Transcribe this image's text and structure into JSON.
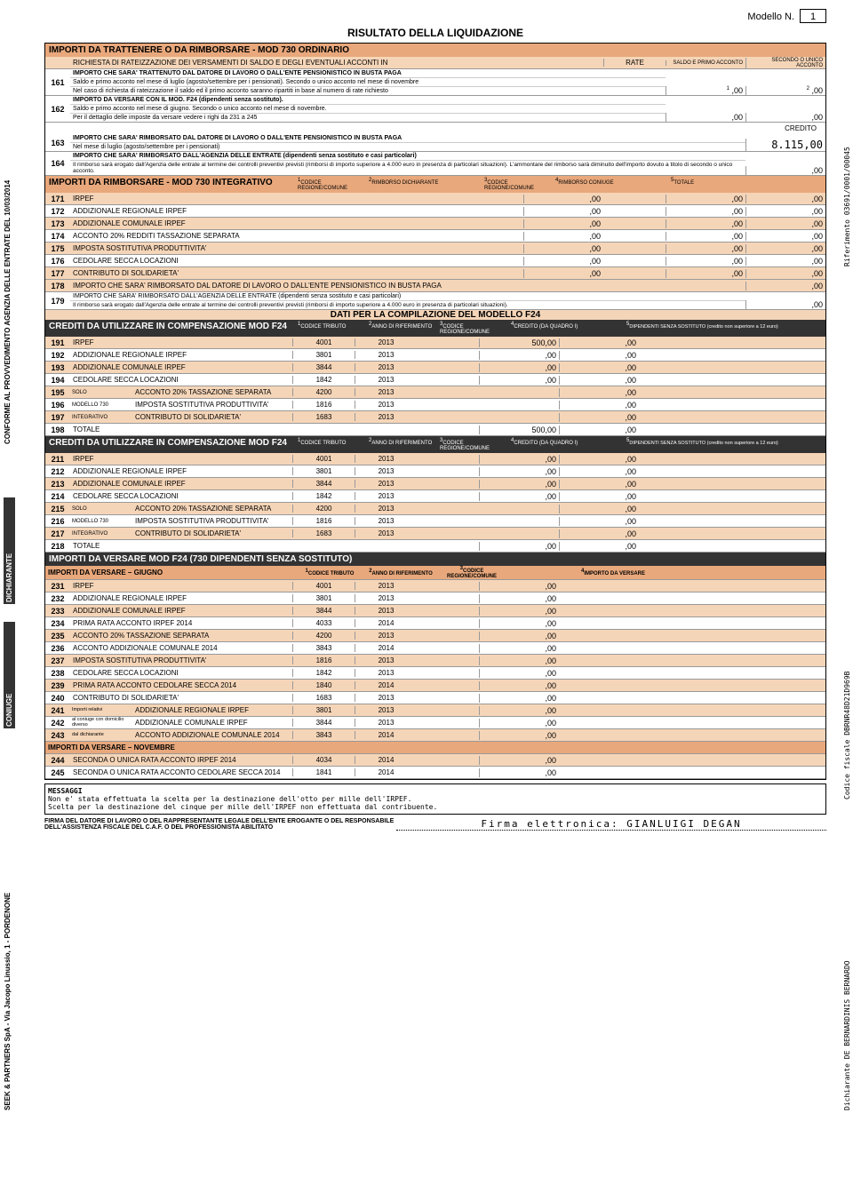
{
  "header": {
    "modello": "Modello N.",
    "num": "1"
  },
  "title_main": "RISULTATO DELLA LIQUIDAZIONE",
  "sec1": {
    "title": "IMPORTI DA TRATTENERE O DA RIMBORSARE - MOD 730 ORDINARIO",
    "subtitle": "RICHIESTA DI RATEIZZAZIONE DEI VERSAMENTI DI SALDO E DEGLI EVENTUALI ACCONTI IN",
    "rate": "RATE",
    "saldo": "SALDO E PRIMO ACCONTO",
    "secondo": "SECONDO O UNICO ACCONTO"
  },
  "r161": {
    "n": "161",
    "t1": "IMPORTO CHE SARA' TRATTENUTO DAL DATORE DI LAVORO O DALL'ENTE PENSIONISTICO IN BUSTA PAGA",
    "t2": "Saldo e primo acconto nel mese di luglio (agosto/settembre per i pensionati). Secondo o unico acconto nel mese di novembre",
    "t3": "Nel caso di richiesta di rateizzazione il saldo ed il primo acconto saranno ripartiti in base al numero di rate richiesto",
    "v1": ",00",
    "v2": ",00"
  },
  "r162": {
    "n": "162",
    "t1": "IMPORTO DA VERSARE CON IL MOD. F24 (dipendenti senza sostituto).",
    "t2": "Saldo e primo acconto nel mese di giugno. Secondo o unico acconto nel mese di novembre.",
    "t3": "Per il dettaglio delle imposte da versare vedere i righi da 231 a 245",
    "v1": ",00",
    "v2": ",00"
  },
  "credito": "CREDITO",
  "r163": {
    "n": "163",
    "t1": "IMPORTO CHE SARA' RIMBORSATO DAL DATORE DI LAVORO O DALL'ENTE PENSIONISTICO IN BUSTA PAGA",
    "t2": "Nel mese di luglio (agosto/settembre per i pensionati)",
    "v": "8.115,00"
  },
  "r164": {
    "n": "164",
    "t1": "IMPORTO CHE SARA' RIMBORSATO DALL'AGENZIA DELLE ENTRATE (dipendenti senza sostituto e casi particolari)",
    "t2": "Il rimborso sarà erogato dall'Agenzia delle entrate al termine dei controlli preventivi previsti (rimborsi di importo superiore a 4.000 euro in presenza di particolari situazioni). L'ammontare del rimborso sarà diminuito dell'importo dovuto a titolo di secondo o unico acconto.",
    "v": ",00"
  },
  "sec2": {
    "title": "IMPORTI DA RIMBORSARE - MOD 730 INTEGRATIVO",
    "h1": "CODICE REGIONE/COMUNE",
    "h2": "RIMBORSO DICHIARANTE",
    "h3": "CODICE REGIONE/COMUNE",
    "h4": "RIMBORSO CONIUGE",
    "h5": "TOTALE"
  },
  "rows_rimb": [
    {
      "n": "171",
      "d": "IRPEF",
      "v1": ",00",
      "v2": ",00",
      "v3": ",00"
    },
    {
      "n": "172",
      "d": "ADDIZIONALE REGIONALE IRPEF",
      "v1": ",00",
      "v2": ",00",
      "v3": ",00"
    },
    {
      "n": "173",
      "d": "ADDIZIONALE COMUNALE IRPEF",
      "v1": ",00",
      "v2": ",00",
      "v3": ",00"
    },
    {
      "n": "174",
      "d": "ACCONTO 20% REDDITI TASSAZIONE SEPARATA",
      "v1": ",00",
      "v2": ",00",
      "v3": ",00"
    },
    {
      "n": "175",
      "d": "IMPOSTA SOSTITUTIVA PRODUTTIVITA'",
      "v1": ",00",
      "v2": ",00",
      "v3": ",00"
    },
    {
      "n": "176",
      "d": "CEDOLARE SECCA LOCAZIONI",
      "v1": ",00",
      "v2": ",00",
      "v3": ",00"
    },
    {
      "n": "177",
      "d": "CONTRIBUTO DI SOLIDARIETA'",
      "v1": ",00",
      "v2": ",00",
      "v3": ",00"
    }
  ],
  "r178": {
    "n": "178",
    "d": "IMPORTO CHE SARA' RIMBORSATO DAL DATORE DI LAVORO O DALL'ENTE PENSIONISTICO IN BUSTA PAGA",
    "v": ",00"
  },
  "r179": {
    "n": "179",
    "t1": "IMPORTO CHE SARA' RIMBORSATO DALL'AGENZIA DELLE ENTRATE (dipendenti senza sostituto e casi particolari)",
    "t2": "Il rimborso sarà erogato dall'Agenzia delle entrate al termine dei controlli preventivi previsti (rimborsi di importo superiore a 4.000 euro in presenza di particolari situazioni).",
    "v": ",00"
  },
  "sec3": {
    "title": "DATI PER LA COMPILAZIONE DEL MODELLO F24"
  },
  "cred_hdr": {
    "title": "CREDITI DA UTILIZZARE IN COMPENSAZIONE MOD F24",
    "h1": "CODICE TRIBUTO",
    "h2": "ANNO DI RIFERIMENTO",
    "h3": "CODICE REGIONE/COMUNE",
    "h4": "CREDITO (DA QUADRO I)",
    "h5": "DIPENDENTI SENZA SOSTITUTO (credito non superiore a 12 euro)"
  },
  "dich": [
    {
      "n": "191",
      "d": "IRPEF",
      "c": "4001",
      "y": "2013",
      "v1": "500,00",
      "v2": ",00"
    },
    {
      "n": "192",
      "d": "ADDIZIONALE REGIONALE IRPEF",
      "c": "3801",
      "y": "2013",
      "v1": ",00",
      "v2": ",00"
    },
    {
      "n": "193",
      "d": "ADDIZIONALE COMUNALE IRPEF",
      "c": "3844",
      "y": "2013",
      "v1": ",00",
      "v2": ",00"
    },
    {
      "n": "194",
      "d": "CEDOLARE SECCA LOCAZIONI",
      "c": "1842",
      "y": "2013",
      "v1": ",00",
      "v2": ",00"
    },
    {
      "n": "195",
      "g": "SOLO",
      "d": "ACCONTO 20% TASSAZIONE SEPARATA",
      "c": "4200",
      "y": "2013",
      "v1": "",
      "v2": ",00"
    },
    {
      "n": "196",
      "g": "MODELLO 730",
      "d": "IMPOSTA SOSTITUTIVA PRODUTTIVITA'",
      "c": "1816",
      "y": "2013",
      "v1": "",
      "v2": ",00"
    },
    {
      "n": "197",
      "g": "INTEGRATIVO",
      "d": "CONTRIBUTO DI SOLIDARIETA'",
      "c": "1683",
      "y": "2013",
      "v1": "",
      "v2": ",00"
    },
    {
      "n": "198",
      "d": "TOTALE",
      "c": "",
      "y": "",
      "v1": "500,00",
      "v2": ",00"
    }
  ],
  "coniuge": [
    {
      "n": "211",
      "d": "IRPEF",
      "c": "4001",
      "y": "2013",
      "v1": ",00",
      "v2": ",00"
    },
    {
      "n": "212",
      "d": "ADDIZIONALE REGIONALE IRPEF",
      "c": "3801",
      "y": "2013",
      "v1": ",00",
      "v2": ",00"
    },
    {
      "n": "213",
      "d": "ADDIZIONALE COMUNALE IRPEF",
      "c": "3844",
      "y": "2013",
      "v1": ",00",
      "v2": ",00"
    },
    {
      "n": "214",
      "d": "CEDOLARE SECCA LOCAZIONI",
      "c": "1842",
      "y": "2013",
      "v1": ",00",
      "v2": ",00"
    },
    {
      "n": "215",
      "g": "SOLO",
      "d": "ACCONTO 20% TASSAZIONE SEPARATA",
      "c": "4200",
      "y": "2013",
      "v1": "",
      "v2": ",00"
    },
    {
      "n": "216",
      "g": "MODELLO 730",
      "d": "IMPOSTA SOSTITUTIVA PRODUTTIVITA'",
      "c": "1816",
      "y": "2013",
      "v1": "",
      "v2": ",00"
    },
    {
      "n": "217",
      "g": "INTEGRATIVO",
      "d": "CONTRIBUTO DI SOLIDARIETA'",
      "c": "1683",
      "y": "2013",
      "v1": "",
      "v2": ",00"
    },
    {
      "n": "218",
      "d": "TOTALE",
      "c": "",
      "y": "",
      "v1": ",00",
      "v2": ",00"
    }
  ],
  "sec4": {
    "title": "IMPORTI DA VERSARE MOD F24 (730 DIPENDENTI SENZA SOSTITUTO)",
    "giugno": "IMPORTI DA VERSARE – GIUGNO",
    "nov": "IMPORTI DA VERSARE – NOVEMBRE",
    "h1": "CODICE TRIBUTO",
    "h2": "ANNO DI RIFERIMENTO",
    "h3": "CODICE REGIONE/COMUNE",
    "h4": "IMPORTO DA VERSARE"
  },
  "vers": [
    {
      "n": "231",
      "d": "IRPEF",
      "c": "4001",
      "y": "2013",
      "v": ",00"
    },
    {
      "n": "232",
      "d": "ADDIZIONALE REGIONALE IRPEF",
      "c": "3801",
      "y": "2013",
      "v": ",00"
    },
    {
      "n": "233",
      "d": "ADDIZIONALE COMUNALE IRPEF",
      "c": "3844",
      "y": "2013",
      "v": ",00"
    },
    {
      "n": "234",
      "d": "PRIMA RATA ACCONTO IRPEF 2014",
      "c": "4033",
      "y": "2014",
      "v": ",00"
    },
    {
      "n": "235",
      "d": "ACCONTO 20% TASSAZIONE SEPARATA",
      "c": "4200",
      "y": "2013",
      "v": ",00"
    },
    {
      "n": "236",
      "d": "ACCONTO ADDIZIONALE COMUNALE 2014",
      "c": "3843",
      "y": "2014",
      "v": ",00"
    },
    {
      "n": "237",
      "d": "IMPOSTA SOSTITUTIVA PRODUTTIVITA'",
      "c": "1816",
      "y": "2013",
      "v": ",00"
    },
    {
      "n": "238",
      "d": "CEDOLARE SECCA LOCAZIONI",
      "c": "1842",
      "y": "2013",
      "v": ",00"
    },
    {
      "n": "239",
      "d": "PRIMA RATA ACCONTO CEDOLARE SECCA 2014",
      "c": "1840",
      "y": "2014",
      "v": ",00"
    },
    {
      "n": "240",
      "d": "CONTRIBUTO DI SOLIDARIETA'",
      "c": "1683",
      "y": "2013",
      "v": ",00"
    },
    {
      "n": "241",
      "g": "Importi relativi",
      "d": "ADDIZIONALE REGIONALE IRPEF",
      "c": "3801",
      "y": "2013",
      "v": ",00"
    },
    {
      "n": "242",
      "g": "al coniuge con domicilio diverso",
      "d": "ADDIZIONALE COMUNALE IRPEF",
      "c": "3844",
      "y": "2013",
      "v": ",00"
    },
    {
      "n": "243",
      "g": "dal dichiarante",
      "d": "ACCONTO ADDIZIONALE COMUNALE 2014",
      "c": "3843",
      "y": "2014",
      "v": ",00"
    }
  ],
  "vers_nov": [
    {
      "n": "244",
      "d": "SECONDA O UNICA RATA ACCONTO IRPEF 2014",
      "c": "4034",
      "y": "2014",
      "v": ",00"
    },
    {
      "n": "245",
      "d": "SECONDA O UNICA RATA ACCONTO CEDOLARE SECCA 2014",
      "c": "1841",
      "y": "2014",
      "v": ",00"
    }
  ],
  "msg": {
    "title": "MESSAGGI",
    "t1": "Non e' stata effettuata la scelta per la destinazione dell'otto per mille dell'IRPEF.",
    "t2": "Scelta per la destinazione del cinque per mille dell'IRPEF non effettuata dal contribuente."
  },
  "firma": {
    "lbl": "FIRMA DEL DATORE DI LAVORO O DEL RAPPRESENTANTE LEGALE DELL'ENTE EROGANTE O DEL RESPONSABILE DELL'ASSISTENZA FISCALE DEL C.A.F. O DEL PROFESSIONISTA ABILITATO",
    "sig": "Firma elettronica: GIANLUIGI DEGAN"
  },
  "side": {
    "l1": "CONFORME AL PROVVEDIMENTO AGENZIA DELLE ENTRATE DEL 10/03/2014",
    "l2": "DICHIARANTE",
    "l3": "CONIUGE",
    "l4": "SEEK & PARTNERS SpA - Via Jacopo Linussio, 1 - PORDENONE",
    "r1": "Riferimento 03691/0001/00045",
    "r2": "Codice fiscale DBRNR48D21D969B",
    "r3": "Dichiarante DE BERNARDINIS BERNARDO"
  }
}
